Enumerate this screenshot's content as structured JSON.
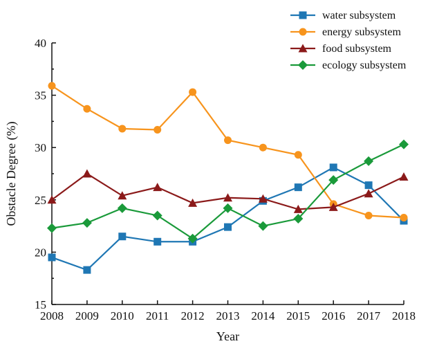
{
  "chart_data": {
    "type": "line",
    "xlabel": "Year",
    "ylabel": "Obstacle Degree (%)",
    "x": [
      "2008",
      "2009",
      "2010",
      "2011",
      "2012",
      "2013",
      "2014",
      "2015",
      "2016",
      "2017",
      "2018"
    ],
    "ylim": [
      15,
      40
    ],
    "yticks": [
      15,
      20,
      25,
      30,
      35,
      40
    ],
    "grid": false,
    "legend_position": "top-right",
    "series": [
      {
        "name": "water subsystem",
        "color": "#1f77b4",
        "marker": "square",
        "values": [
          19.5,
          18.3,
          21.5,
          21.0,
          21.0,
          22.4,
          24.9,
          26.2,
          28.1,
          26.4,
          23.0
        ]
      },
      {
        "name": "energy subsystem",
        "color": "#f7941d",
        "marker": "circle",
        "values": [
          35.9,
          33.7,
          31.8,
          31.7,
          35.3,
          30.7,
          30.0,
          29.3,
          24.6,
          23.5,
          23.3
        ]
      },
      {
        "name": "food subsystem",
        "color": "#8b1a1a",
        "marker": "triangle",
        "values": [
          25.0,
          27.5,
          25.4,
          26.2,
          24.7,
          25.2,
          25.1,
          24.1,
          24.3,
          25.6,
          27.2
        ]
      },
      {
        "name": "ecology subsystem",
        "color": "#1a9a3a",
        "marker": "diamond",
        "values": [
          22.3,
          22.8,
          24.2,
          23.5,
          21.3,
          24.2,
          22.5,
          23.2,
          26.9,
          28.7,
          30.3
        ]
      }
    ]
  }
}
